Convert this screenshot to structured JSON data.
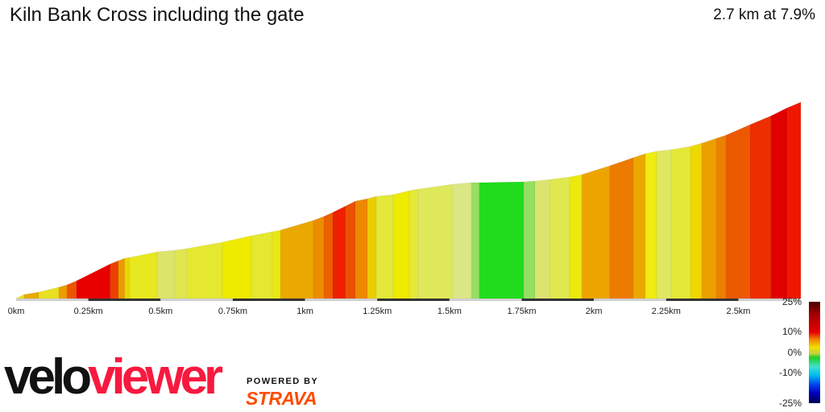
{
  "title": "Kiln Bank Cross including the gate",
  "summary": "2.7 km at 7.9%",
  "logo": {
    "velo": "velo",
    "viewer": "viewer",
    "powered_by": "POWERED BY",
    "strava": "STRAVA"
  },
  "colors": {
    "axis_dark": "#333333",
    "axis_light": "#d0d0d0",
    "viewer_red": "#f7193f",
    "strava_orange": "#fc4c02"
  },
  "gradient_scale": {
    "labels": [
      "25%",
      "10%",
      "0%",
      "-10%",
      "-25%"
    ]
  },
  "chart_data": {
    "type": "area",
    "title": "Kiln Bank Cross including the gate",
    "xlabel": "",
    "ylabel": "",
    "x_unit": "km",
    "xlim": [
      0,
      2.716
    ],
    "x_ticks": [
      0,
      0.25,
      0.5,
      0.75,
      1,
      1.25,
      1.5,
      1.75,
      2,
      2.25,
      2.5
    ],
    "x_tick_labels": [
      "0km",
      "0.25km",
      "0.5km",
      "0.75km",
      "1km",
      "1.25km",
      "1.5km",
      "1.75km",
      "2km",
      "2.25km",
      "2.5km"
    ],
    "distance_km": [
      0,
      0.028,
      0.078,
      0.148,
      0.176,
      0.209,
      0.326,
      0.354,
      0.376,
      0.393,
      0.488,
      0.549,
      0.591,
      0.714,
      0.814,
      0.887,
      0.915,
      1.029,
      1.065,
      1.096,
      1.141,
      1.174,
      1.216,
      1.247,
      1.305,
      1.361,
      1.392,
      1.511,
      1.576,
      1.603,
      1.757,
      1.796,
      1.849,
      1.916,
      1.958,
      2.055,
      2.136,
      2.178,
      2.217,
      2.267,
      2.334,
      2.373,
      2.423,
      2.457,
      2.54,
      2.613,
      2.669,
      2.716
    ],
    "elevation_gain_m": [
      0,
      4.4,
      7.0,
      12.3,
      15.0,
      19.4,
      37.8,
      41.4,
      44.0,
      44.9,
      51.0,
      52.8,
      54.6,
      61.6,
      68.6,
      73.0,
      74.8,
      85.4,
      89.8,
      94.2,
      101.2,
      106.5,
      109.1,
      111.8,
      113.5,
      117.9,
      119.7,
      125.0,
      126.7,
      126.7,
      127.6,
      128.5,
      130.2,
      132.9,
      135.5,
      145.2,
      154.0,
      158.4,
      161.0,
      162.8,
      166.3,
      169.8,
      175.1,
      178.6,
      190.1,
      199.8,
      208.6,
      214.7
    ],
    "segment_colors": [
      "#e8e020",
      "#eaaa00",
      "#e8e020",
      "#eb9c00",
      "#ec5500",
      "#e80000",
      "#ec4000",
      "#eb9a00",
      "#e8d800",
      "#e8e820",
      "#dce46a",
      "#dfe650",
      "#e5e830",
      "#eeea00",
      "#e4e830",
      "#eae810",
      "#eaa800",
      "#ec8c00",
      "#ec6000",
      "#ee2000",
      "#ec5000",
      "#ec8800",
      "#eccc00",
      "#e4e838",
      "#eeea00",
      "#e4e838",
      "#dfe85a",
      "#dbe684",
      "#94e060",
      "#20dc1c",
      "#94e060",
      "#dce470",
      "#e0e850",
      "#eaea10",
      "#eca400",
      "#ec7c00",
      "#eca800",
      "#eeec10",
      "#dfe860",
      "#e4e838",
      "#eed800",
      "#eca000",
      "#ec8000",
      "#ec5800",
      "#ec2e00",
      "#e00000",
      "#ee1800"
    ],
    "grid": false,
    "legend": "none"
  }
}
